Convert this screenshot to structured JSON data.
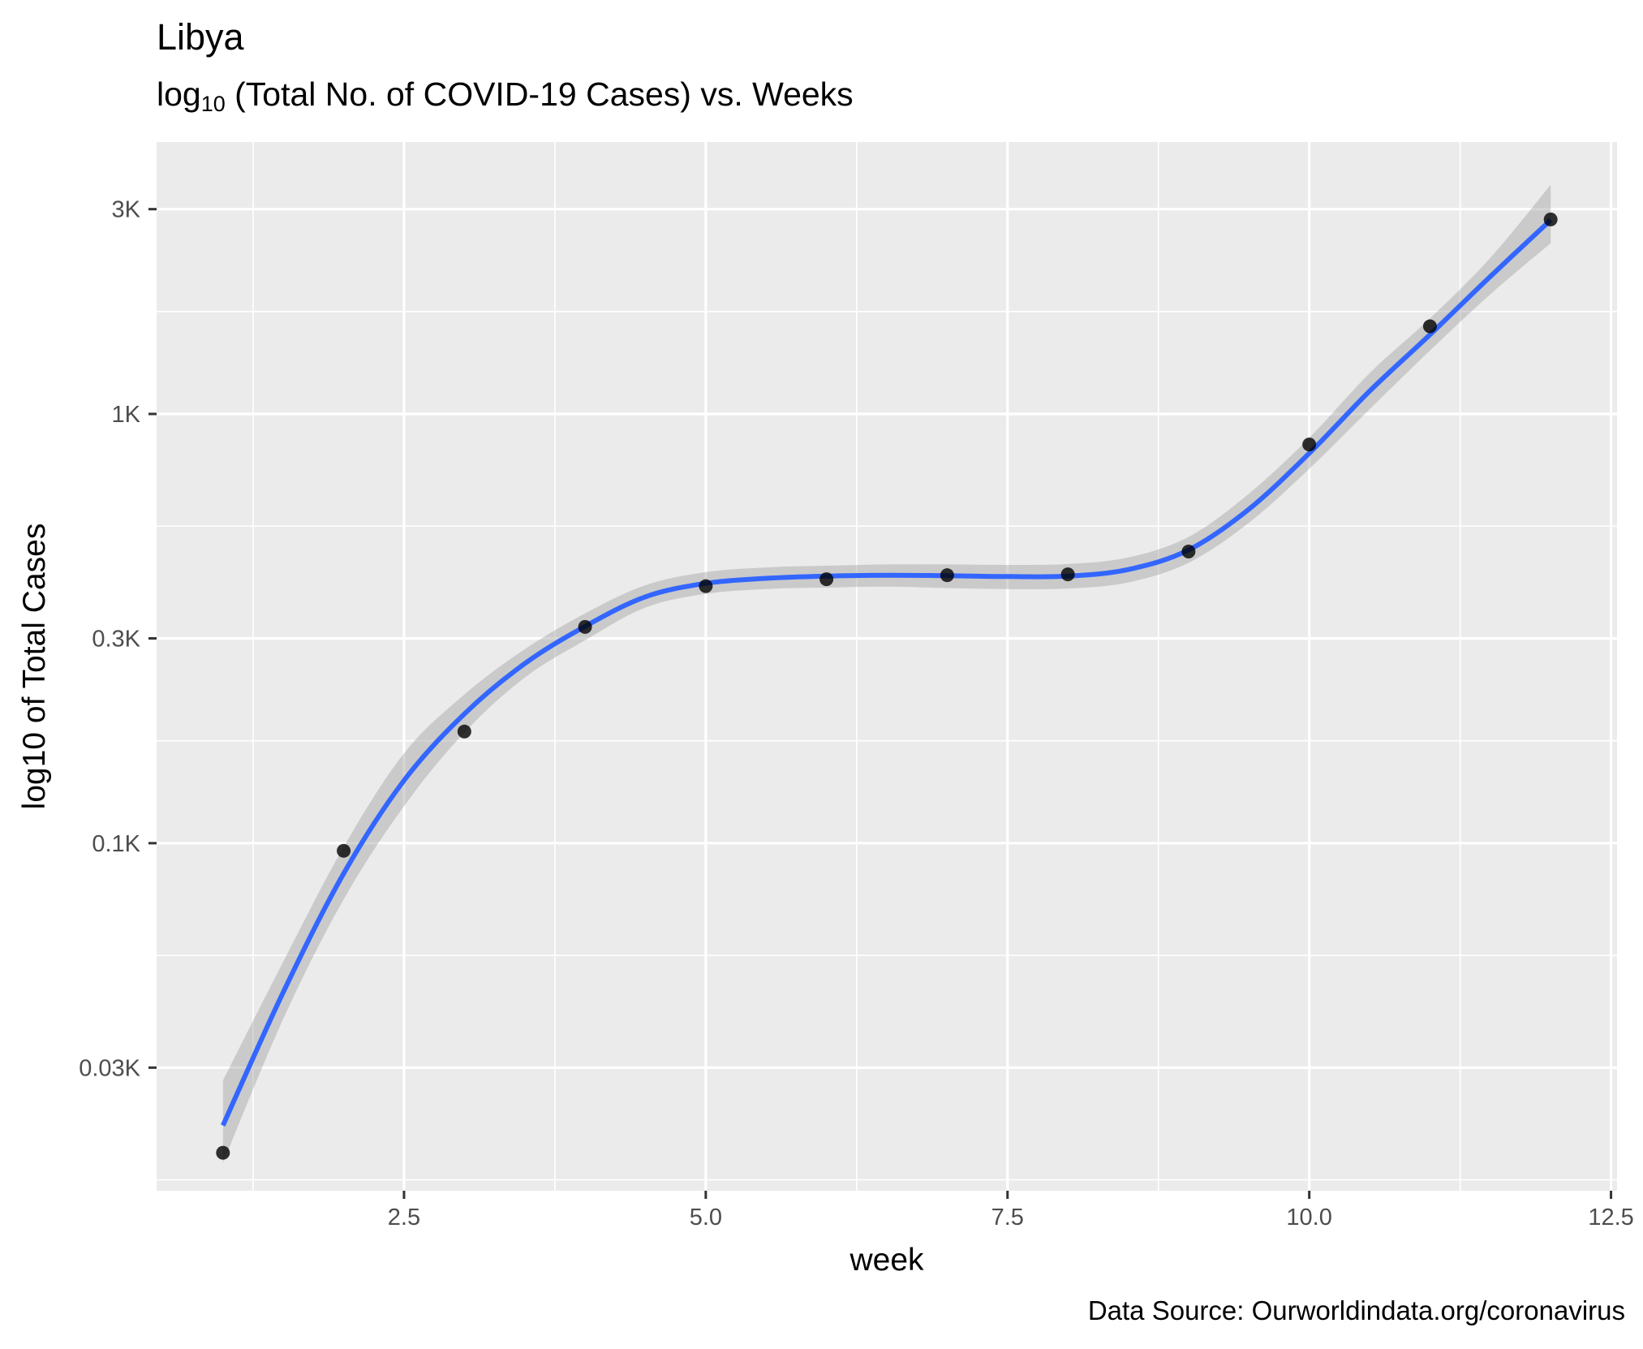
{
  "chart_data": {
    "type": "scatter",
    "title": "Libya",
    "subtitle": {
      "prefix": "log",
      "sub": "10",
      "rest": " (Total No. of COVID-19 Cases) vs. Weeks"
    },
    "xlabel": "week",
    "ylabel": "log10 of Total Cases",
    "caption": "Data Source: Ourworldindata.org/coronavirus",
    "y_scale": "log10",
    "xlim": [
      0.45,
      12.55
    ],
    "ylim": [
      15.5,
      4300
    ],
    "x_ticks": [
      {
        "value": 2.5,
        "label": "2.5"
      },
      {
        "value": 5.0,
        "label": "5.0"
      },
      {
        "value": 7.5,
        "label": "7.5"
      },
      {
        "value": 10.0,
        "label": "10.0"
      },
      {
        "value": 12.5,
        "label": "12.5"
      }
    ],
    "y_ticks": [
      {
        "value": 30,
        "label": "0.03K"
      },
      {
        "value": 100,
        "label": "0.1K"
      },
      {
        "value": 300,
        "label": "0.3K"
      },
      {
        "value": 1000,
        "label": "1K"
      },
      {
        "value": 3000,
        "label": "3K"
      }
    ],
    "grid": true,
    "points": {
      "x": [
        1,
        2,
        3,
        4,
        5,
        6,
        7,
        8,
        9,
        10,
        11,
        12
      ],
      "y": [
        19,
        96,
        182,
        319,
        397,
        412,
        421,
        423,
        478,
        849,
        1600,
        2839
      ]
    },
    "smooth": {
      "method": "loess",
      "x": [
        1,
        1.5,
        2,
        2.5,
        3,
        3.5,
        4,
        4.5,
        5,
        5.5,
        6,
        6.5,
        7,
        7.5,
        8,
        8.5,
        9,
        9.5,
        10,
        10.5,
        11,
        11.5,
        12
      ],
      "y": [
        22,
        45,
        85,
        140,
        200,
        262,
        320,
        375,
        403,
        414,
        419,
        421,
        420,
        418,
        419,
        434,
        482,
        600,
        810,
        1130,
        1530,
        2090,
        2830
      ],
      "ci_lower": [
        18,
        39,
        74,
        122,
        181,
        243,
        297,
        354,
        381,
        391,
        394,
        396,
        393,
        391,
        392,
        405,
        450,
        558,
        745,
        1025,
        1405,
        1900,
        2500
      ],
      "ci_upper": [
        28,
        53,
        98,
        162,
        222,
        283,
        343,
        399,
        428,
        439,
        443,
        446,
        446,
        445,
        447,
        463,
        517,
        652,
        880,
        1245,
        1670,
        2310,
        3420
      ]
    },
    "colors": {
      "panel": "#EBEBEB",
      "grid": "#FFFFFF",
      "point": "#000000",
      "line": "#3366FF",
      "ribbon": "#999999"
    }
  }
}
